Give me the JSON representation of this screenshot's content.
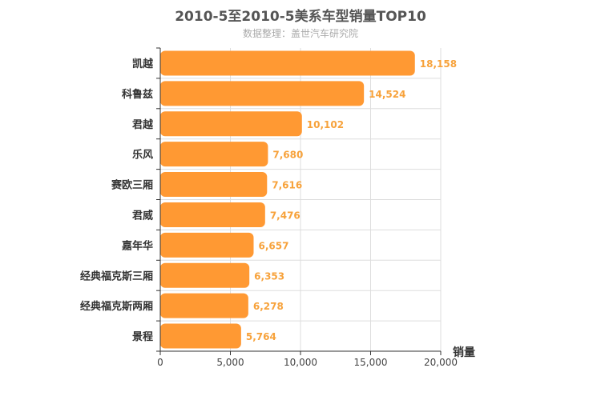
{
  "chart_data": {
    "type": "bar",
    "orientation": "horizontal",
    "title": "2010-5至2010-5美系车型销量TOP10",
    "subtitle": "数据整理：盖世汽车研究院",
    "categories": [
      "凯越",
      "科鲁兹",
      "君越",
      "乐风",
      "赛欧三厢",
      "君威",
      "嘉年华",
      "经典福克斯三厢",
      "经典福克斯两厢",
      "景程"
    ],
    "values": [
      18158,
      14524,
      10102,
      7680,
      7616,
      7476,
      6657,
      6353,
      6278,
      5764
    ],
    "value_labels": [
      "18,158",
      "14,524",
      "10,102",
      "7,680",
      "7,616",
      "7,476",
      "6,657",
      "6,353",
      "6,278",
      "5,764"
    ],
    "xlabel": "销量",
    "ylabel": "",
    "xlim": [
      0,
      20000
    ],
    "ticks": [
      0,
      5000,
      10000,
      15000,
      20000
    ],
    "tick_labels": [
      "0",
      "5,000",
      "10,000",
      "15,000",
      "20,000"
    ],
    "grid": true,
    "bar_color": "#ff9933",
    "label_color": "#f7a23b"
  }
}
